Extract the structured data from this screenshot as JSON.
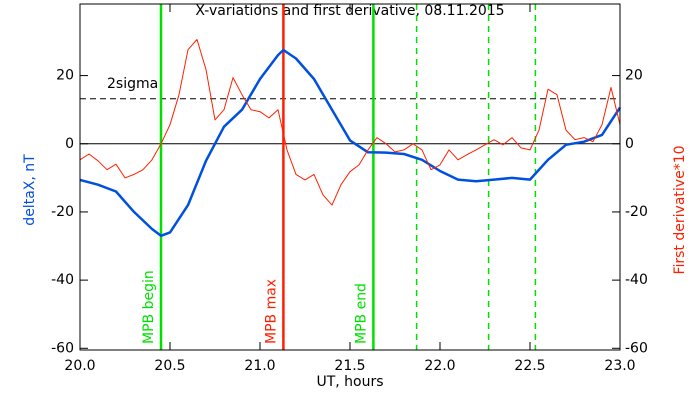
{
  "chart_data": {
    "type": "line",
    "title": "X-variations and first derivative, 08.11.2015",
    "xlabel": "UT, hours",
    "ylabel": "deltaX, nT",
    "y2label": "First derivative*10",
    "xlim": [
      20.0,
      23.0
    ],
    "xticks": [
      {
        "value": 20,
        "label": "20.0"
      },
      20.5,
      {
        "value": 21,
        "label": "21.0"
      },
      21.5,
      {
        "value": 22,
        "label": "22.0"
      },
      22.5,
      {
        "value": 23,
        "label": "23.0"
      }
    ],
    "ylim": [
      -60.5,
      41
    ],
    "yticks": [
      -60,
      -40,
      -20,
      0,
      20
    ],
    "y2lim": [
      -60.5,
      41
    ],
    "y2ticks": [
      -60,
      -40,
      -20,
      0,
      20
    ],
    "series": [
      {
        "name": "deltaX",
        "color": "#0050e0",
        "width": 2.5,
        "x": [
          20.0,
          20.1,
          20.2,
          20.3,
          20.4,
          20.45,
          20.5,
          20.6,
          20.7,
          20.8,
          20.9,
          21.0,
          21.1,
          21.13,
          21.2,
          21.3,
          21.4,
          21.5,
          21.6,
          21.7,
          21.8,
          21.9,
          22.0,
          22.1,
          22.2,
          22.3,
          22.4,
          22.5,
          22.6,
          22.7,
          22.8,
          22.9,
          23.0
        ],
        "values": [
          -10.6,
          -12,
          -14,
          -20,
          -25,
          -27,
          -26,
          -18,
          -5,
          5,
          10,
          19,
          26,
          27.5,
          25,
          19,
          10,
          1,
          -2.5,
          -2.6,
          -3,
          -4.7,
          -8,
          -10.5,
          -11,
          -10.5,
          -10,
          -10.5,
          -4.7,
          -0.3,
          0.6,
          2.6,
          10.6
        ]
      },
      {
        "name": "First derivative*10",
        "color": "#ff2000",
        "width": 1,
        "axis": "y2",
        "x": [
          20.0,
          20.05,
          20.1,
          20.15,
          20.2,
          20.25,
          20.3,
          20.35,
          20.4,
          20.45,
          20.5,
          20.55,
          20.6,
          20.65,
          20.7,
          20.75,
          20.8,
          20.85,
          20.9,
          20.95,
          21.0,
          21.05,
          21.1,
          21.15,
          21.2,
          21.25,
          21.3,
          21.35,
          21.4,
          21.45,
          21.5,
          21.55,
          21.6,
          21.65,
          21.7,
          21.75,
          21.8,
          21.85,
          21.9,
          21.95,
          22.0,
          22.05,
          22.1,
          22.15,
          22.2,
          22.25,
          22.3,
          22.35,
          22.4,
          22.45,
          22.5,
          22.55,
          22.6,
          22.65,
          22.7,
          22.75,
          22.8,
          22.85,
          22.9,
          22.95,
          23.0
        ],
        "values": [
          -4.7,
          -3,
          -5,
          -7.6,
          -6,
          -10,
          -9,
          -7.6,
          -4.7,
          0,
          5.6,
          14.4,
          27.6,
          30.6,
          21.8,
          7,
          10,
          19.4,
          14.4,
          10,
          9.4,
          7.6,
          10,
          -1.8,
          -9,
          -10.6,
          -9,
          -15,
          -18,
          -12,
          -8.2,
          -6.2,
          -1.8,
          1.8,
          0,
          -2.4,
          -1.8,
          0,
          -1.8,
          -7.6,
          -6.2,
          -1.8,
          -4.7,
          -3.2,
          -1.8,
          -0.3,
          1.2,
          -0.3,
          1.8,
          -1.2,
          -1.8,
          4,
          16,
          14.4,
          4,
          1.2,
          1.8,
          0.6,
          5.6,
          16.5,
          5.6
        ]
      }
    ],
    "hlines": [
      {
        "y": 0,
        "color": "#000000",
        "style": "solid"
      },
      {
        "y": 13.2,
        "color": "#000000",
        "style": "dashed",
        "label": "2sigma"
      }
    ],
    "vlines": [
      {
        "x": 20.45,
        "color": "#00e000",
        "style": "solid",
        "label": "MPB begin"
      },
      {
        "x": 21.13,
        "color": "#ff2000",
        "style": "solid",
        "label": "MPB max"
      },
      {
        "x": 21.63,
        "color": "#00e000",
        "style": "solid",
        "label": "MPB end"
      },
      {
        "x": 21.87,
        "color": "#00e000",
        "style": "dashed"
      },
      {
        "x": 22.27,
        "color": "#00e000",
        "style": "dashed"
      },
      {
        "x": 22.53,
        "color": "#00e000",
        "style": "dashed"
      }
    ]
  }
}
